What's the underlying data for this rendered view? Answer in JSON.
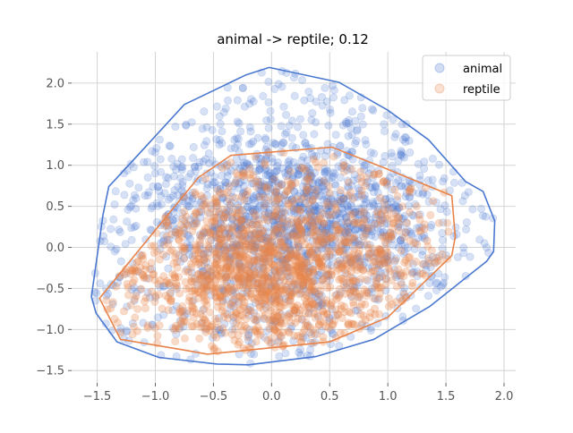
{
  "chart_data": {
    "type": "scatter",
    "title": "animal -> reptile; 0.12",
    "xlabel": "",
    "ylabel": "",
    "xlim": [
      -1.72,
      2.1
    ],
    "ylim": [
      -1.65,
      2.38
    ],
    "x_ticks": [
      -1.5,
      -1.0,
      -0.5,
      0.0,
      0.5,
      1.0,
      1.5,
      2.0
    ],
    "x_tick_labels": [
      "−1.5",
      "−1.0",
      "−0.5",
      "0.0",
      "0.5",
      "1.0",
      "1.5",
      "2.0"
    ],
    "y_ticks": [
      -1.5,
      -1.0,
      -0.5,
      0.0,
      0.5,
      1.0,
      1.5,
      2.0
    ],
    "y_tick_labels": [
      "−1.5",
      "−1.0",
      "−0.5",
      "0.0",
      "0.5",
      "1.0",
      "1.5",
      "2.0"
    ],
    "grid": true,
    "legend_position": "top-right",
    "series": [
      {
        "name": "animal",
        "color": "#4a78d0",
        "hull": [
          [
            -0.02,
            2.19
          ],
          [
            0.58,
            2.01
          ],
          [
            1.0,
            1.67
          ],
          [
            1.35,
            1.31
          ],
          [
            1.67,
            0.8
          ],
          [
            1.82,
            0.68
          ],
          [
            1.92,
            0.32
          ],
          [
            1.91,
            -0.05
          ],
          [
            1.85,
            -0.17
          ],
          [
            1.36,
            -0.72
          ],
          [
            0.88,
            -1.12
          ],
          [
            0.38,
            -1.33
          ],
          [
            -0.2,
            -1.43
          ],
          [
            -0.47,
            -1.42
          ],
          [
            -0.97,
            -1.34
          ],
          [
            -1.33,
            -1.15
          ],
          [
            -1.51,
            -0.8
          ],
          [
            -1.55,
            -0.6
          ],
          [
            -1.45,
            0.4
          ],
          [
            -1.4,
            0.74
          ],
          [
            -1.1,
            1.2
          ],
          [
            -0.75,
            1.74
          ],
          [
            -0.22,
            2.1
          ]
        ],
        "center": [
          0.18,
          0.35
        ],
        "spread": [
          0.62,
          0.55
        ]
      },
      {
        "name": "reptile",
        "color": "#e8834a",
        "hull": [
          [
            0.52,
            1.22
          ],
          [
            1.0,
            0.95
          ],
          [
            1.55,
            0.63
          ],
          [
            1.58,
            0.13
          ],
          [
            1.55,
            -0.1
          ],
          [
            1.0,
            -0.85
          ],
          [
            0.5,
            -1.15
          ],
          [
            -0.55,
            -1.3
          ],
          [
            -0.75,
            -1.25
          ],
          [
            -1.3,
            -1.12
          ],
          [
            -1.48,
            -0.62
          ],
          [
            -0.63,
            0.85
          ],
          [
            -0.35,
            1.12
          ]
        ],
        "center": [
          0.0,
          -0.3
        ],
        "spread": [
          0.55,
          0.42
        ]
      }
    ]
  }
}
